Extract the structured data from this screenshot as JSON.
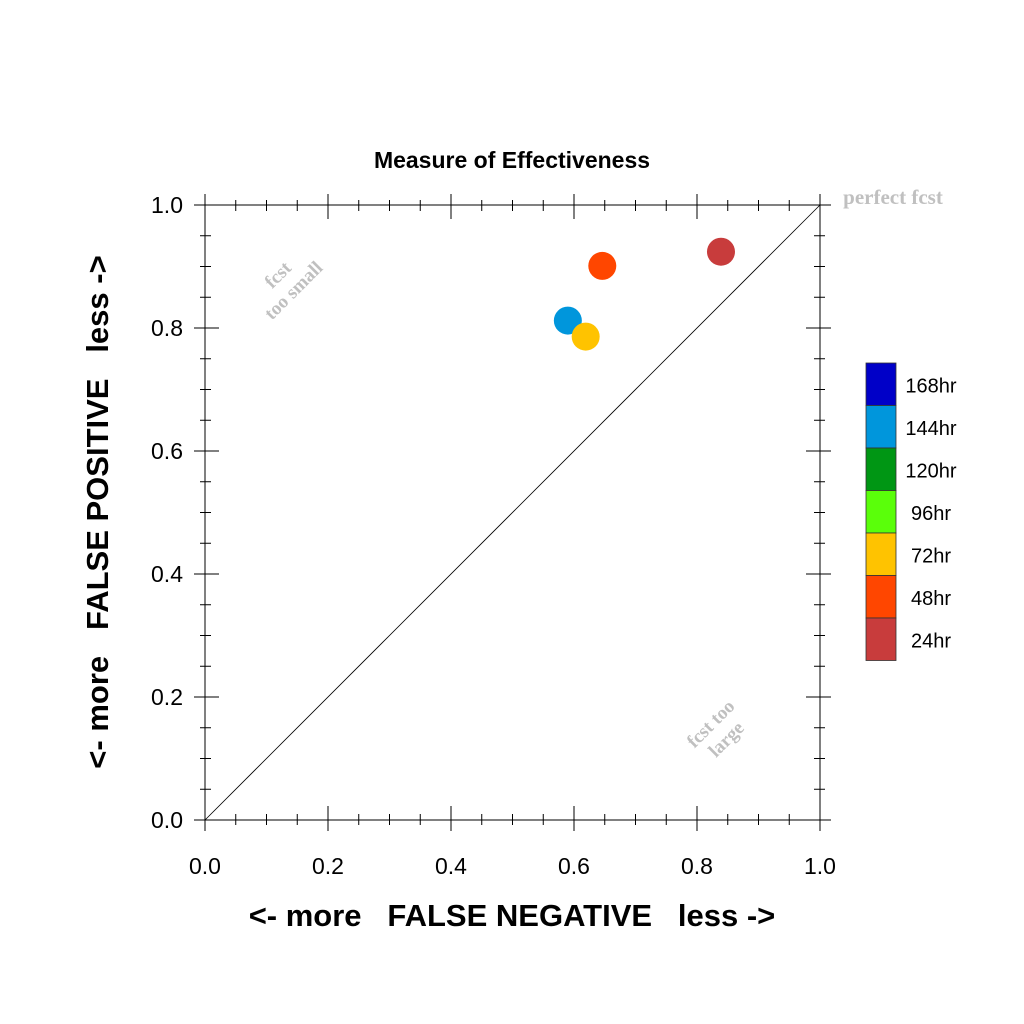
{
  "chart_data": {
    "type": "scatter",
    "title": "Measure of Effectiveness",
    "xlabel": "<- more   FALSE NEGATIVE   less ->",
    "ylabel": "<- more   FALSE POSITIVE   less ->",
    "xlim": [
      0.0,
      1.0
    ],
    "ylim": [
      0.0,
      1.0
    ],
    "x_ticks": [
      "0.0",
      "0.2",
      "0.4",
      "0.6",
      "0.8",
      "1.0"
    ],
    "y_ticks": [
      "0.0",
      "0.2",
      "0.4",
      "0.6",
      "0.8",
      "1.0"
    ],
    "grid": false,
    "diagonal_line": true,
    "annotations": {
      "perfect": "perfect fcst",
      "too_small_1": "fcst",
      "too_small_2": "too small",
      "too_large_1": "fcst too",
      "too_large_2": "large"
    },
    "legend_position": "right",
    "series": [
      {
        "name": "168hr",
        "color": "#0000c8",
        "points": []
      },
      {
        "name": "144hr",
        "color": "#0096dc",
        "points": [
          [
            0.59,
            0.812
          ]
        ]
      },
      {
        "name": "120hr",
        "color": "#009614",
        "points": []
      },
      {
        "name": "96hr",
        "color": "#5aff0a",
        "points": []
      },
      {
        "name": "72hr",
        "color": "#ffc300",
        "points": [
          [
            0.619,
            0.786
          ]
        ]
      },
      {
        "name": "48hr",
        "color": "#ff4600",
        "points": [
          [
            0.646,
            0.901
          ]
        ]
      },
      {
        "name": "24hr",
        "color": "#c83c3c",
        "points": [
          [
            0.839,
            0.924
          ]
        ]
      }
    ]
  }
}
